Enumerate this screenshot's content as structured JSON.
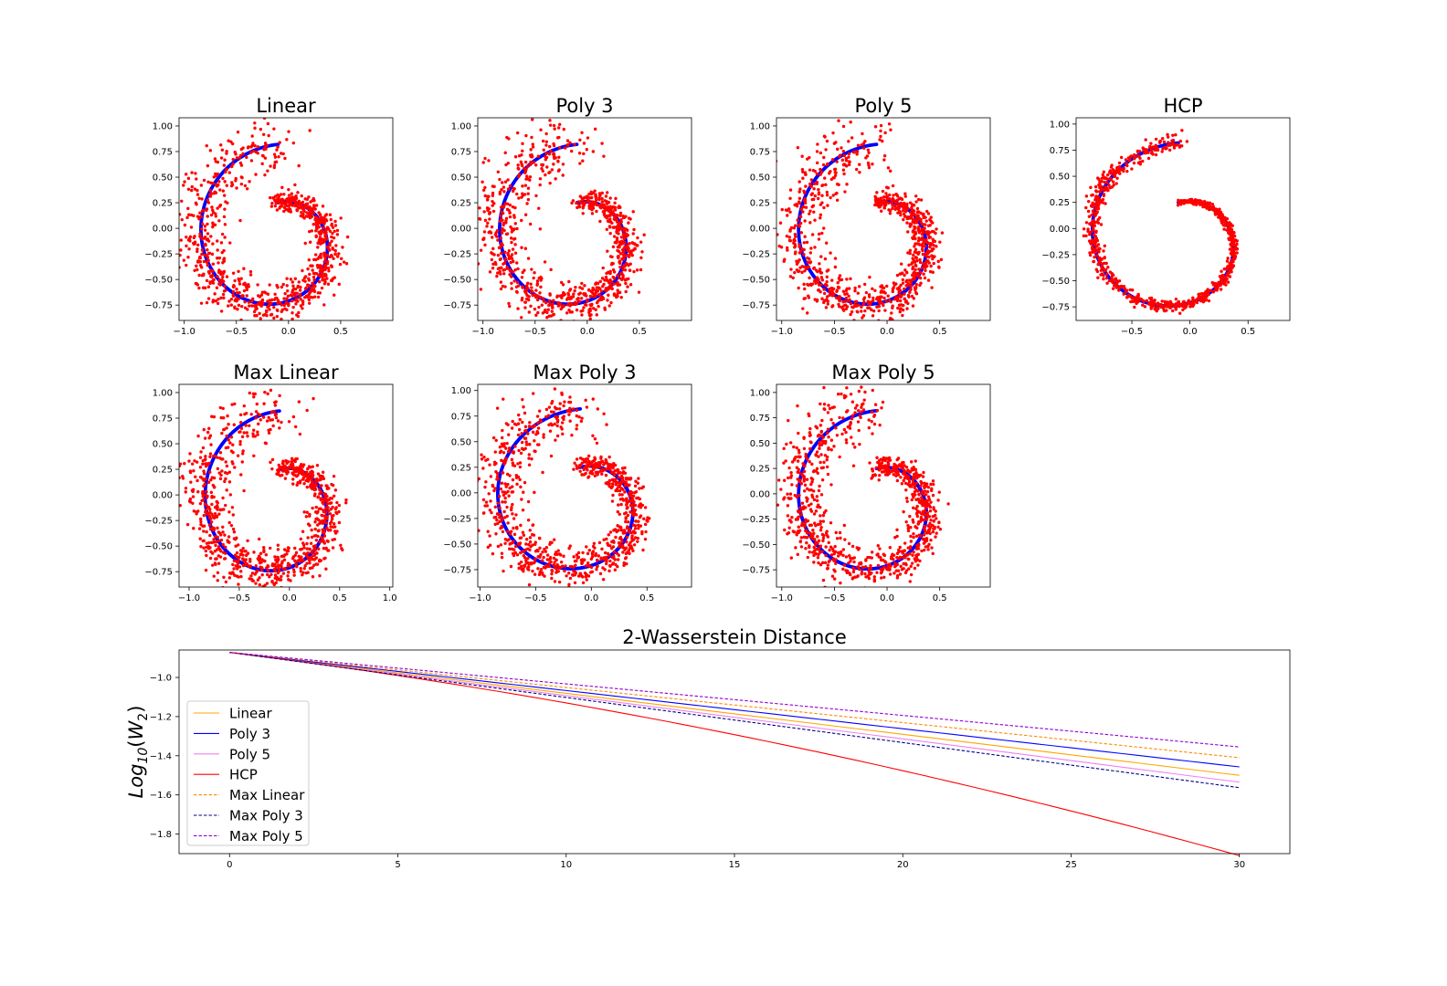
{
  "colors": {
    "target": "#0000ff",
    "samples": "#ff0000",
    "Linear": "#ffa500",
    "Poly 3": "#0000ff",
    "Poly 5": "#ee82ee",
    "HCP": "#ff0000",
    "Max Linear": "#ff8c00",
    "Max Poly 3": "#00008b",
    "Max Poly 5": "#9400d3"
  },
  "chart_data": [
    {
      "type": "scatter",
      "title": "Linear",
      "xticks": [
        "−1.0",
        "−0.5",
        "0.0",
        "0.5"
      ],
      "yticks": [
        "1.00",
        "0.75",
        "0.50",
        "0.25",
        "0.00",
        "−0.25",
        "−0.50",
        "−0.75"
      ],
      "xlim": [
        -1.05,
        1.0
      ],
      "ylim": [
        -0.9,
        1.08
      ],
      "spread": 0.22,
      "seed": 11,
      "series": [
        {
          "values": "spiral"
        },
        {
          "values": "scatter"
        }
      ]
    },
    {
      "type": "scatter",
      "title": "Poly 3",
      "xticks": [
        "−1.0",
        "−0.5",
        "0.0",
        "0.5"
      ],
      "yticks": [
        "1.00",
        "0.75",
        "0.50",
        "0.25",
        "0.00",
        "−0.25",
        "−0.50",
        "−0.75"
      ],
      "xlim": [
        -1.05,
        1.0
      ],
      "ylim": [
        -0.9,
        1.08
      ],
      "spread": 0.22,
      "seed": 23,
      "series": [
        {
          "values": "spiral"
        },
        {
          "values": "scatter"
        }
      ]
    },
    {
      "type": "scatter",
      "title": "Poly 5",
      "xticks": [
        "−1.0",
        "−0.5",
        "0.0",
        "0.5"
      ],
      "yticks": [
        "1.00",
        "0.75",
        "0.50",
        "0.25",
        "0.00",
        "−0.25",
        "−0.50",
        "−0.75"
      ],
      "xlim": [
        -1.05,
        0.98
      ],
      "ylim": [
        -0.9,
        1.08
      ],
      "spread": 0.22,
      "seed": 37,
      "series": [
        {
          "values": "spiral"
        },
        {
          "values": "scatter"
        }
      ]
    },
    {
      "type": "scatter",
      "title": "HCP",
      "xticks": [
        "−0.5",
        "0.0",
        "0.5"
      ],
      "yticks": [
        "1.00",
        "0.75",
        "0.50",
        "0.25",
        "0.00",
        "−0.25",
        "−0.50",
        "−0.75"
      ],
      "xlim": [
        -0.98,
        0.86
      ],
      "ylim": [
        -0.88,
        1.06
      ],
      "spread": 0.06,
      "seed": 41,
      "series": [
        {
          "values": "spiral"
        },
        {
          "values": "scatter"
        }
      ]
    },
    {
      "type": "scatter",
      "title": "Max Linear",
      "xticks": [
        "−1.0",
        "−0.5",
        "0.0",
        "0.5",
        "1.0"
      ],
      "yticks": [
        "1.00",
        "0.75",
        "0.50",
        "0.25",
        "0.00",
        "−0.25",
        "−0.50",
        "−0.75"
      ],
      "xlim": [
        -1.1,
        1.03
      ],
      "ylim": [
        -0.9,
        1.08
      ],
      "spread": 0.24,
      "seed": 53,
      "series": [
        {
          "values": "spiral"
        },
        {
          "values": "scatter"
        }
      ]
    },
    {
      "type": "scatter",
      "title": "Max Poly 3",
      "xticks": [
        "−1.0",
        "−0.5",
        "0.0",
        "0.5"
      ],
      "yticks": [
        "1.00",
        "0.75",
        "0.50",
        "0.25",
        "0.00",
        "−0.25",
        "−0.50",
        "−0.75"
      ],
      "xlim": [
        -1.02,
        0.9
      ],
      "ylim": [
        -0.92,
        1.06
      ],
      "spread": 0.22,
      "seed": 67,
      "series": [
        {
          "values": "spiral"
        },
        {
          "values": "scatter"
        }
      ]
    },
    {
      "type": "scatter",
      "title": "Max Poly 5",
      "xticks": [
        "−1.0",
        "−0.5",
        "0.0",
        "0.5"
      ],
      "yticks": [
        "1.00",
        "0.75",
        "0.50",
        "0.25",
        "0.00",
        "−0.25",
        "−0.50",
        "−0.75"
      ],
      "xlim": [
        -1.05,
        0.98
      ],
      "ylim": [
        -0.92,
        1.08
      ],
      "spread": 0.22,
      "seed": 79,
      "series": [
        {
          "values": "spiral"
        },
        {
          "values": "scatter"
        }
      ]
    },
    {
      "type": "line",
      "title": "2-Wasserstein Distance",
      "xlabel": "",
      "ylabel": "Log10(W2)",
      "xlim": [
        -1.5,
        31.5
      ],
      "ylim": [
        -1.9,
        -0.86
      ],
      "xticks": [
        0,
        5,
        10,
        15,
        20,
        25,
        30
      ],
      "yticks": [
        -1.0,
        -1.2,
        -1.4,
        -1.6,
        -1.8
      ],
      "legend": "left",
      "x": [
        0,
        30
      ],
      "series": [
        {
          "name": "Linear",
          "style": "solid",
          "start": -0.872,
          "end": -1.5,
          "curve": 0
        },
        {
          "name": "Poly 3",
          "style": "solid",
          "start": -0.872,
          "end": -1.457,
          "curve": 0
        },
        {
          "name": "Poly 5",
          "style": "solid",
          "start": -0.872,
          "end": -1.535,
          "curve": 0
        },
        {
          "name": "HCP",
          "style": "solid",
          "start": -0.872,
          "end": -1.91,
          "curve": 0.12
        },
        {
          "name": "Max Linear",
          "style": "dashed",
          "start": -0.872,
          "end": -1.41,
          "curve": 0
        },
        {
          "name": "Max Poly 3",
          "style": "dashed",
          "start": -0.872,
          "end": -1.563,
          "curve": 0
        },
        {
          "name": "Max Poly 5",
          "style": "dashed",
          "start": -0.872,
          "end": -1.355,
          "curve": 0
        }
      ]
    }
  ]
}
